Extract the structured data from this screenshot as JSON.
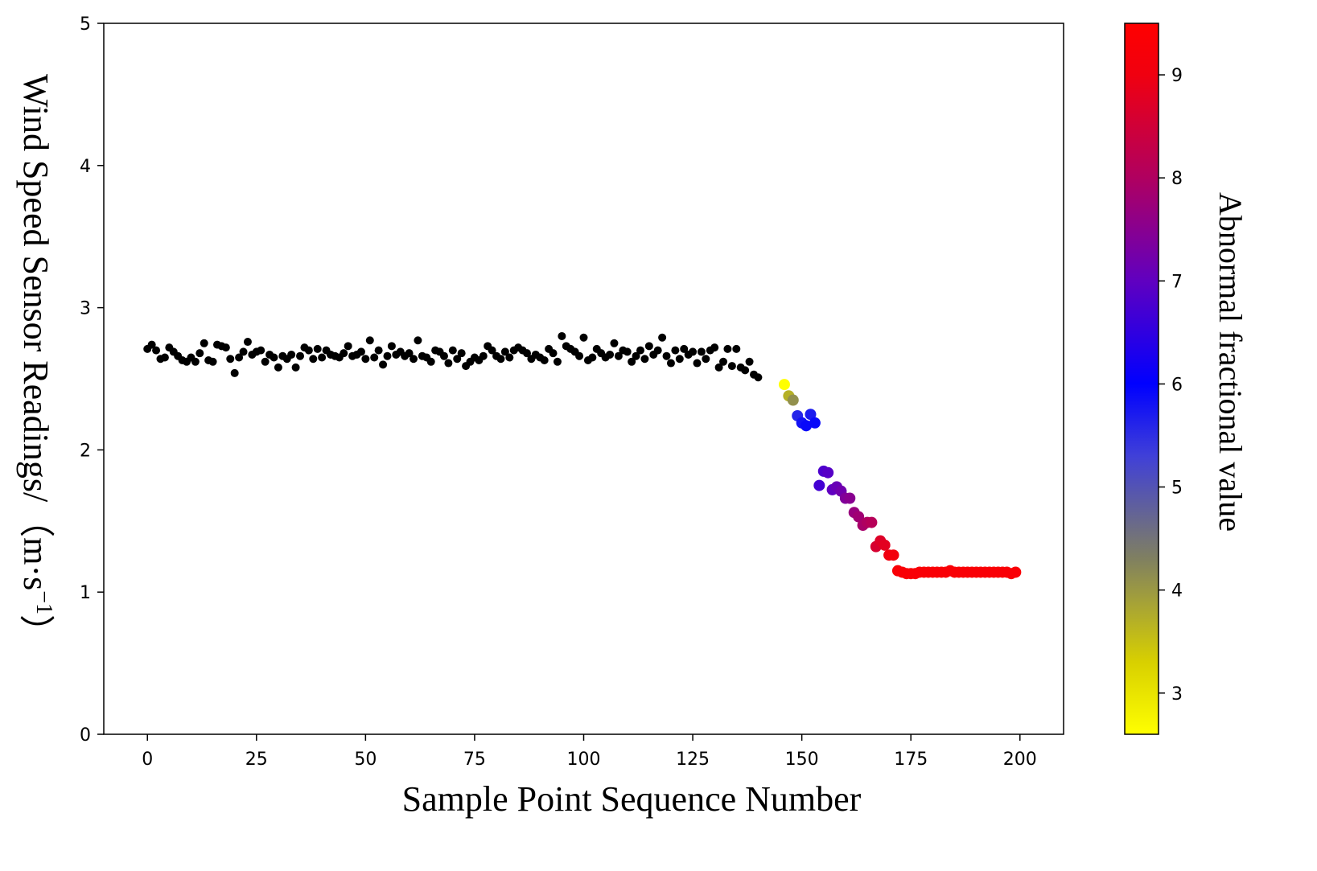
{
  "chart_data": {
    "type": "scatter",
    "title": "",
    "xlabel": "Sample Point Sequence Number",
    "ylabel_main": "Wind Speed Sensor Readings/",
    "ylabel_unit_prefix": "（m·s",
    "ylabel_unit_sup": "−1",
    "ylabel_unit_suffix": "）",
    "xlim": [
      -10,
      210
    ],
    "ylim": [
      0,
      5
    ],
    "xticks": [
      0,
      25,
      50,
      75,
      100,
      125,
      150,
      175,
      200
    ],
    "yticks": [
      0,
      1,
      2,
      3,
      4,
      5
    ],
    "grid": false,
    "normal_color": "#000000",
    "colorbar": {
      "label": "Abnormal fractional value",
      "range": [
        2.6,
        9.5
      ],
      "ticks": [
        3,
        4,
        5,
        6,
        7,
        8,
        9
      ],
      "colormap": [
        {
          "v": 2.6,
          "color": "#ffff00"
        },
        {
          "v": 3.3,
          "color": "#d8d000"
        },
        {
          "v": 4.3,
          "color": "#808060"
        },
        {
          "v": 5.3,
          "color": "#4040d8"
        },
        {
          "v": 6.0,
          "color": "#0000ff"
        },
        {
          "v": 7.0,
          "color": "#6000c0"
        },
        {
          "v": 8.0,
          "color": "#b00060"
        },
        {
          "v": 9.0,
          "color": "#f00010"
        },
        {
          "v": 9.5,
          "color": "#ff0000"
        }
      ]
    },
    "normal_points": [
      [
        0,
        2.71
      ],
      [
        1,
        2.74
      ],
      [
        2,
        2.7
      ],
      [
        3,
        2.64
      ],
      [
        4,
        2.65
      ],
      [
        5,
        2.72
      ],
      [
        6,
        2.69
      ],
      [
        7,
        2.66
      ],
      [
        8,
        2.63
      ],
      [
        9,
        2.62
      ],
      [
        10,
        2.65
      ],
      [
        11,
        2.62
      ],
      [
        12,
        2.68
      ],
      [
        13,
        2.75
      ],
      [
        14,
        2.63
      ],
      [
        15,
        2.62
      ],
      [
        16,
        2.74
      ],
      [
        17,
        2.73
      ],
      [
        18,
        2.72
      ],
      [
        19,
        2.64
      ],
      [
        20,
        2.54
      ],
      [
        21,
        2.65
      ],
      [
        22,
        2.69
      ],
      [
        23,
        2.76
      ],
      [
        24,
        2.67
      ],
      [
        25,
        2.69
      ],
      [
        26,
        2.7
      ],
      [
        27,
        2.62
      ],
      [
        28,
        2.67
      ],
      [
        29,
        2.65
      ],
      [
        30,
        2.58
      ],
      [
        31,
        2.66
      ],
      [
        32,
        2.64
      ],
      [
        33,
        2.67
      ],
      [
        34,
        2.58
      ],
      [
        35,
        2.66
      ],
      [
        36,
        2.72
      ],
      [
        37,
        2.7
      ],
      [
        38,
        2.64
      ],
      [
        39,
        2.71
      ],
      [
        40,
        2.65
      ],
      [
        41,
        2.7
      ],
      [
        42,
        2.67
      ],
      [
        43,
        2.66
      ],
      [
        44,
        2.65
      ],
      [
        45,
        2.68
      ],
      [
        46,
        2.73
      ],
      [
        47,
        2.66
      ],
      [
        48,
        2.67
      ],
      [
        49,
        2.69
      ],
      [
        50,
        2.64
      ],
      [
        51,
        2.77
      ],
      [
        52,
        2.65
      ],
      [
        53,
        2.7
      ],
      [
        54,
        2.6
      ],
      [
        55,
        2.66
      ],
      [
        56,
        2.73
      ],
      [
        57,
        2.67
      ],
      [
        58,
        2.69
      ],
      [
        59,
        2.66
      ],
      [
        60,
        2.68
      ],
      [
        61,
        2.64
      ],
      [
        62,
        2.77
      ],
      [
        63,
        2.66
      ],
      [
        64,
        2.65
      ],
      [
        65,
        2.62
      ],
      [
        66,
        2.7
      ],
      [
        67,
        2.69
      ],
      [
        68,
        2.66
      ],
      [
        69,
        2.61
      ],
      [
        70,
        2.7
      ],
      [
        71,
        2.64
      ],
      [
        72,
        2.68
      ],
      [
        73,
        2.59
      ],
      [
        74,
        2.62
      ],
      [
        75,
        2.65
      ],
      [
        76,
        2.63
      ],
      [
        77,
        2.66
      ],
      [
        78,
        2.73
      ],
      [
        79,
        2.7
      ],
      [
        80,
        2.66
      ],
      [
        81,
        2.64
      ],
      [
        82,
        2.69
      ],
      [
        83,
        2.65
      ],
      [
        84,
        2.7
      ],
      [
        85,
        2.72
      ],
      [
        86,
        2.7
      ],
      [
        87,
        2.68
      ],
      [
        88,
        2.64
      ],
      [
        89,
        2.67
      ],
      [
        90,
        2.65
      ],
      [
        91,
        2.63
      ],
      [
        92,
        2.71
      ],
      [
        93,
        2.68
      ],
      [
        94,
        2.62
      ],
      [
        95,
        2.8
      ],
      [
        96,
        2.73
      ],
      [
        97,
        2.71
      ],
      [
        98,
        2.69
      ],
      [
        99,
        2.66
      ],
      [
        100,
        2.79
      ],
      [
        101,
        2.63
      ],
      [
        102,
        2.65
      ],
      [
        103,
        2.71
      ],
      [
        104,
        2.68
      ],
      [
        105,
        2.65
      ],
      [
        106,
        2.67
      ],
      [
        107,
        2.75
      ],
      [
        108,
        2.66
      ],
      [
        109,
        2.7
      ],
      [
        110,
        2.69
      ],
      [
        111,
        2.62
      ],
      [
        112,
        2.66
      ],
      [
        113,
        2.7
      ],
      [
        114,
        2.64
      ],
      [
        115,
        2.73
      ],
      [
        116,
        2.67
      ],
      [
        117,
        2.7
      ],
      [
        118,
        2.79
      ],
      [
        119,
        2.66
      ],
      [
        120,
        2.61
      ],
      [
        121,
        2.7
      ],
      [
        122,
        2.64
      ],
      [
        123,
        2.71
      ],
      [
        124,
        2.67
      ],
      [
        125,
        2.69
      ],
      [
        126,
        2.61
      ],
      [
        127,
        2.69
      ],
      [
        128,
        2.64
      ],
      [
        129,
        2.7
      ],
      [
        130,
        2.72
      ],
      [
        131,
        2.58
      ],
      [
        132,
        2.62
      ],
      [
        133,
        2.71
      ],
      [
        134,
        2.59
      ],
      [
        135,
        2.71
      ],
      [
        136,
        2.58
      ],
      [
        137,
        2.56
      ],
      [
        138,
        2.62
      ],
      [
        139,
        2.53
      ],
      [
        140,
        2.51
      ]
    ],
    "abnormal_points": [
      [
        146,
        2.46,
        2.6
      ],
      [
        147,
        2.38,
        3.7
      ],
      [
        148,
        2.35,
        4.1
      ],
      [
        149,
        2.24,
        5.6
      ],
      [
        150,
        2.19,
        5.8
      ],
      [
        151,
        2.17,
        5.9
      ],
      [
        152,
        2.25,
        5.7
      ],
      [
        153,
        2.19,
        5.9
      ],
      [
        154,
        1.75,
        6.7
      ],
      [
        155,
        1.85,
        6.8
      ],
      [
        156,
        1.84,
        6.9
      ],
      [
        157,
        1.72,
        7.0
      ],
      [
        158,
        1.74,
        7.1
      ],
      [
        159,
        1.71,
        7.2
      ],
      [
        160,
        1.66,
        7.4
      ],
      [
        161,
        1.66,
        7.5
      ],
      [
        162,
        1.56,
        7.7
      ],
      [
        163,
        1.53,
        7.8
      ],
      [
        164,
        1.47,
        7.9
      ],
      [
        165,
        1.49,
        8.0
      ],
      [
        166,
        1.49,
        8.1
      ],
      [
        167,
        1.32,
        8.6
      ],
      [
        168,
        1.36,
        8.7
      ],
      [
        169,
        1.33,
        8.8
      ],
      [
        170,
        1.26,
        9.0
      ],
      [
        171,
        1.26,
        9.1
      ],
      [
        172,
        1.15,
        9.3
      ],
      [
        173,
        1.14,
        9.3
      ],
      [
        174,
        1.13,
        9.3
      ],
      [
        175,
        1.13,
        9.3
      ],
      [
        176,
        1.13,
        9.3
      ],
      [
        177,
        1.14,
        9.3
      ],
      [
        178,
        1.14,
        9.3
      ],
      [
        179,
        1.14,
        9.3
      ],
      [
        180,
        1.14,
        9.3
      ],
      [
        181,
        1.14,
        9.3
      ],
      [
        182,
        1.14,
        9.3
      ],
      [
        183,
        1.14,
        9.3
      ],
      [
        184,
        1.15,
        9.3
      ],
      [
        185,
        1.14,
        9.3
      ],
      [
        186,
        1.14,
        9.3
      ],
      [
        187,
        1.14,
        9.3
      ],
      [
        188,
        1.14,
        9.3
      ],
      [
        189,
        1.14,
        9.3
      ],
      [
        190,
        1.14,
        9.3
      ],
      [
        191,
        1.14,
        9.3
      ],
      [
        192,
        1.14,
        9.3
      ],
      [
        193,
        1.14,
        9.3
      ],
      [
        194,
        1.14,
        9.3
      ],
      [
        195,
        1.14,
        9.3
      ],
      [
        196,
        1.14,
        9.3
      ],
      [
        197,
        1.14,
        9.3
      ],
      [
        198,
        1.13,
        9.3
      ],
      [
        199,
        1.14,
        9.3
      ]
    ]
  }
}
